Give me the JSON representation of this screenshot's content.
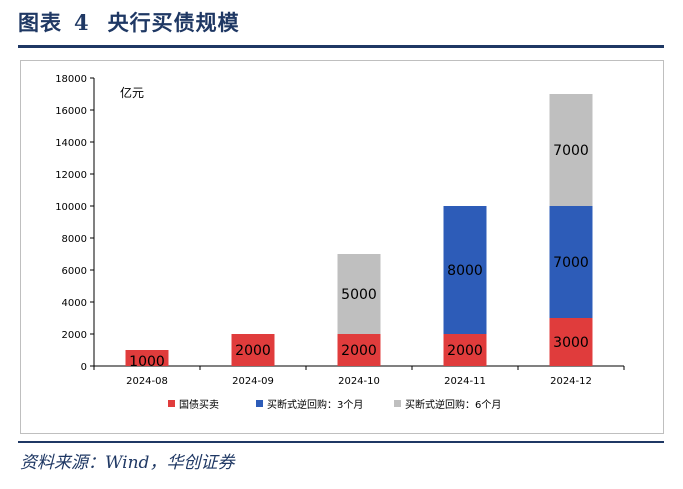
{
  "header": {
    "label": "图表",
    "number": "4",
    "title": "央行买债规模"
  },
  "source": "资料来源：Wind，华创证券",
  "colors": {
    "navy": "#1f3864",
    "treasury": "#e03c3c",
    "repo3m": "#2d5cb8",
    "repo6m": "#bfbfbf"
  },
  "chart_data": {
    "type": "bar",
    "stacked": true,
    "unit_label": "亿元",
    "categories": [
      "2024-08",
      "2024-09",
      "2024-10",
      "2024-11",
      "2024-12"
    ],
    "series": [
      {
        "name": "国债买卖",
        "values": [
          1000,
          2000,
          2000,
          2000,
          3000
        ],
        "color": "#e03c3c"
      },
      {
        "name": "买断式逆回购：3个月",
        "values": [
          0,
          0,
          0,
          8000,
          7000
        ],
        "color": "#2d5cb8"
      },
      {
        "name": "买断式逆回购：6个月",
        "values": [
          0,
          0,
          5000,
          0,
          7000
        ],
        "color": "#bfbfbf"
      }
    ],
    "ylim": [
      0,
      18000
    ],
    "yticks": [
      0,
      2000,
      4000,
      6000,
      8000,
      10000,
      12000,
      14000,
      16000,
      18000
    ],
    "grid": false,
    "legend_position": "bottom"
  }
}
